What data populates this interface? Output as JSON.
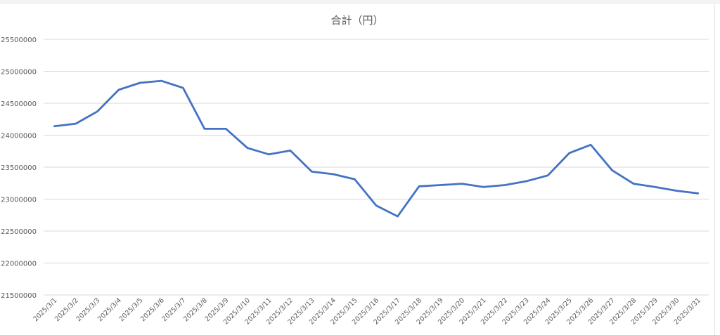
{
  "chart_data": {
    "type": "line",
    "title": "合計（円）",
    "xlabel": "",
    "ylabel": "",
    "ylim": [
      21500000,
      25500000
    ],
    "yticks": [
      21500000,
      22000000,
      22500000,
      23000000,
      23500000,
      24000000,
      24500000,
      25000000,
      25500000
    ],
    "ytick_labels": [
      "21500000",
      "22000000",
      "22500000",
      "23000000",
      "23500000",
      "24000000",
      "24500000",
      "25000000",
      "25500000"
    ],
    "grid": true,
    "legend": "none",
    "categories": [
      "2025/3/1",
      "2025/3/2",
      "2025/3/3",
      "2025/3/4",
      "2025/3/5",
      "2025/3/6",
      "2025/3/7",
      "2025/3/8",
      "2025/3/9",
      "2025/3/10",
      "2025/3/11",
      "2025/3/12",
      "2025/3/13",
      "2025/3/14",
      "2025/3/15",
      "2025/3/16",
      "2025/3/17",
      "2025/3/18",
      "2025/3/19",
      "2025/3/20",
      "2025/3/21",
      "2025/3/22",
      "2025/3/23",
      "2025/3/24",
      "2025/3/25",
      "2025/3/26",
      "2025/3/27",
      "2025/3/28",
      "2025/3/29",
      "2025/3/30",
      "2025/3/31"
    ],
    "series": [
      {
        "color": "#4472c4",
        "values": [
          24140000,
          24180000,
          24370000,
          24710000,
          24820000,
          24850000,
          24740000,
          24100000,
          24100000,
          23800000,
          23700000,
          23760000,
          23430000,
          23390000,
          23310000,
          22900000,
          22730000,
          23200000,
          23220000,
          23240000,
          23190000,
          23220000,
          23280000,
          23370000,
          23720000,
          23850000,
          23450000,
          23240000,
          23190000,
          23130000,
          23090000
        ]
      }
    ]
  }
}
